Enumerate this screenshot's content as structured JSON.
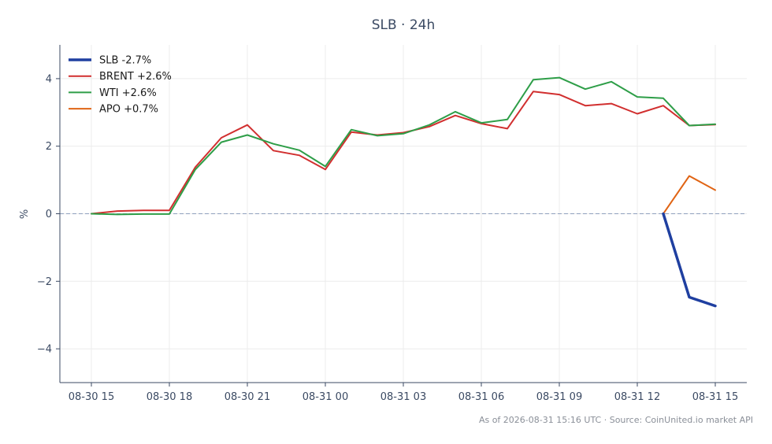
{
  "chart_data": {
    "type": "line",
    "title": "SLB · 24h",
    "ylabel": "%",
    "xlabel": "",
    "ylim": [
      -5,
      5
    ],
    "yticks": [
      -4,
      -2,
      0,
      2,
      4
    ],
    "ytick_labels": [
      "−4",
      "−2",
      "0",
      "2",
      "4"
    ],
    "x_hours": [
      0,
      1,
      2,
      3,
      4,
      5,
      6,
      7,
      8,
      9,
      10,
      11,
      12,
      13,
      14,
      15,
      16,
      17,
      18,
      19,
      20,
      21,
      22,
      23,
      24
    ],
    "xticks": [
      0,
      3,
      6,
      9,
      12,
      15,
      18,
      21,
      24
    ],
    "xtick_labels": [
      "08-30 15",
      "08-30 18",
      "08-30 21",
      "08-31 00",
      "08-31 03",
      "08-31 06",
      "08-31 09",
      "08-31 12",
      "08-31 15"
    ],
    "grid": true,
    "legend_position": "top-left",
    "zero_line": true,
    "series": [
      {
        "name": "SLB -2.7%",
        "color": "#1f3fa0",
        "width": 3.5,
        "x": [
          22,
          23,
          24
        ],
        "values": [
          0,
          -2.47,
          -2.73
        ]
      },
      {
        "name": "BRENT +2.6%",
        "color": "#d12f2f",
        "width": 2,
        "x": [
          0,
          1,
          2,
          3,
          4,
          5,
          6,
          7,
          8,
          9,
          10,
          11,
          12,
          13,
          14,
          15,
          16,
          17,
          18,
          19,
          20,
          21,
          22,
          23,
          24
        ],
        "values": [
          0,
          0.08,
          0.1,
          0.1,
          1.38,
          2.25,
          2.63,
          1.87,
          1.73,
          1.31,
          2.42,
          2.33,
          2.4,
          2.58,
          2.91,
          2.67,
          2.52,
          3.62,
          3.53,
          3.2,
          3.26,
          2.96,
          3.2,
          2.61,
          2.64
        ]
      },
      {
        "name": "WTI +2.6%",
        "color": "#2e9e48",
        "width": 2,
        "x": [
          0,
          1,
          2,
          3,
          4,
          5,
          6,
          7,
          8,
          9,
          10,
          11,
          12,
          13,
          14,
          15,
          16,
          17,
          18,
          19,
          20,
          21,
          22,
          23,
          24
        ],
        "values": [
          0,
          -0.02,
          -0.01,
          -0.01,
          1.31,
          2.12,
          2.33,
          2.07,
          1.88,
          1.4,
          2.49,
          2.31,
          2.37,
          2.63,
          3.02,
          2.69,
          2.79,
          3.97,
          4.03,
          3.69,
          3.91,
          3.46,
          3.42,
          2.61,
          2.65
        ]
      },
      {
        "name": "APO +0.7%",
        "color": "#e06414",
        "width": 2,
        "x": [
          22,
          23,
          24
        ],
        "values": [
          0,
          1.12,
          0.7
        ]
      }
    ]
  },
  "footer": "As of 2026-08-31 15:16 UTC · Source: CoinUnited.io market API"
}
